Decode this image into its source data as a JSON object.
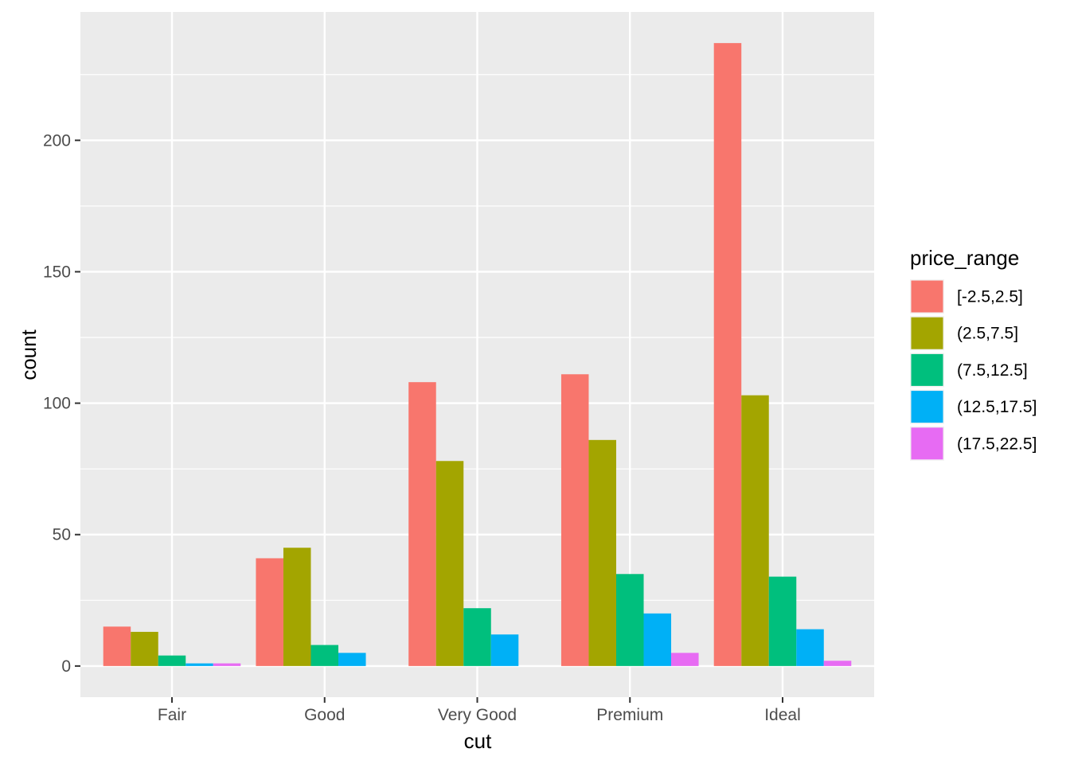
{
  "chart_data": {
    "type": "bar",
    "xlabel": "cut",
    "ylabel": "count",
    "categories": [
      "Fair",
      "Good",
      "Very Good",
      "Premium",
      "Ideal"
    ],
    "ylim": [
      -11.85,
      248.85
    ],
    "yticks": [
      0,
      50,
      100,
      150,
      200
    ],
    "grid": true,
    "legend": {
      "title": "price_range",
      "placement": "right"
    },
    "series": [
      {
        "name": "[-2.5,2.5]",
        "color": "#F8766D",
        "values": [
          15,
          41,
          108,
          111,
          237
        ]
      },
      {
        "name": "(2.5,7.5]",
        "color": "#A3A500",
        "values": [
          13,
          45,
          78,
          86,
          103
        ]
      },
      {
        "name": "(7.5,12.5]",
        "color": "#00BF7D",
        "values": [
          4,
          8,
          22,
          35,
          34
        ]
      },
      {
        "name": "(12.5,17.5]",
        "color": "#00B0F6",
        "values": [
          1,
          5,
          12,
          20,
          14
        ]
      },
      {
        "name": "(17.5,22.5]",
        "color": "#E76BF3",
        "values": [
          1,
          0,
          0,
          5,
          2
        ]
      }
    ]
  }
}
